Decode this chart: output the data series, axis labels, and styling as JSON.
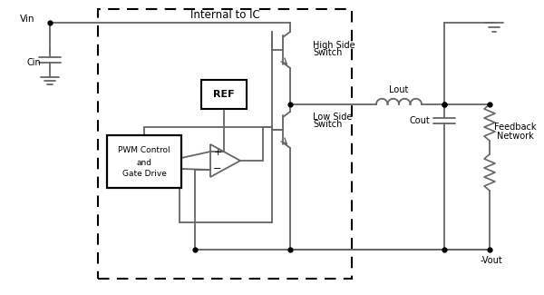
{
  "background_color": "#ffffff",
  "line_color": "#666666",
  "internal_label": "Internal to IC",
  "vin_label": "Vin",
  "cin_label": "Cin",
  "high_side_label": [
    "High Side",
    "Switch"
  ],
  "low_side_label": [
    "Low Side",
    "Switch"
  ],
  "ref_label": "REF",
  "pwm_label": [
    "PWM Control",
    "and",
    "Gate Drive"
  ],
  "lout_label": "Lout",
  "cout_label": "Cout",
  "feedback_label": [
    "Feedback",
    "Network"
  ],
  "vout_label": "-Vout"
}
